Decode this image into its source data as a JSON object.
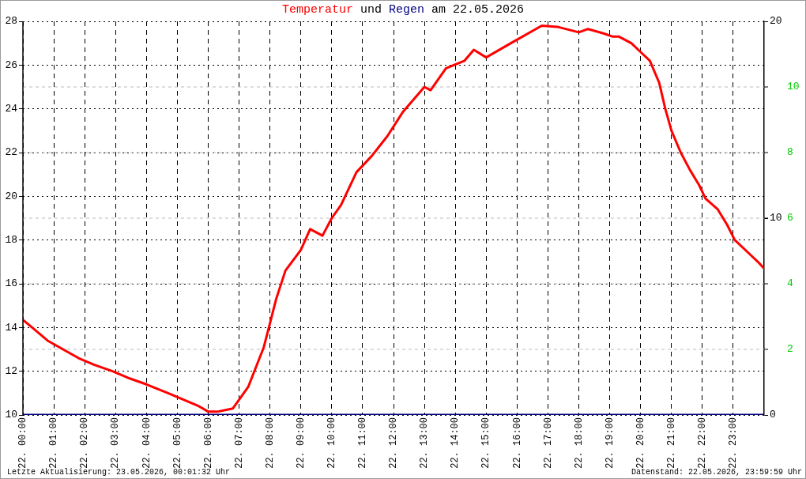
{
  "chart_data": {
    "type": "line",
    "title": "Temperatur und Regen am 22.05.2026",
    "annotations": [
      "Letzte Aktualisierung: 23.05.2026, 00:01:32 Uhr",
      "Datenstand: 22.05.2026, 23:59:59 Uhr"
    ],
    "xlim": [
      "2026-05-22T00:00",
      "2026-05-23T00:00"
    ],
    "xticks": [
      {
        "value": "2026-05-22T00:00",
        "label": "22. 00:00"
      },
      {
        "value": "2026-05-22T01:00",
        "label": "22. 01:00"
      },
      {
        "value": "2026-05-22T02:00",
        "label": "22. 02:00"
      },
      {
        "value": "2026-05-22T03:00",
        "label": "22. 03:00"
      },
      {
        "value": "2026-05-22T04:00",
        "label": "22. 04:00"
      },
      {
        "value": "2026-05-22T05:00",
        "label": "22. 05:00"
      },
      {
        "value": "2026-05-22T06:00",
        "label": "22. 06:00"
      },
      {
        "value": "2026-05-22T07:00",
        "label": "22. 07:00"
      },
      {
        "value": "2026-05-22T08:00",
        "label": "22. 08:00"
      },
      {
        "value": "2026-05-22T09:00",
        "label": "22. 09:00"
      },
      {
        "value": "2026-05-22T10:00",
        "label": "22. 10:00"
      },
      {
        "value": "2026-05-22T11:00",
        "label": "22. 11:00"
      },
      {
        "value": "2026-05-22T12:00",
        "label": "22. 12:00"
      },
      {
        "value": "2026-05-22T13:00",
        "label": "22. 13:00"
      },
      {
        "value": "2026-05-22T14:00",
        "label": "22. 14:00"
      },
      {
        "value": "2026-05-22T15:00",
        "label": "22. 15:00"
      },
      {
        "value": "2026-05-22T16:00",
        "label": "22. 16:00"
      },
      {
        "value": "2026-05-22T17:00",
        "label": "22. 17:00"
      },
      {
        "value": "2026-05-22T18:00",
        "label": "22. 18:00"
      },
      {
        "value": "2026-05-22T19:00",
        "label": "22. 19:00"
      },
      {
        "value": "2026-05-22T20:00",
        "label": "22. 20:00"
      },
      {
        "value": "2026-05-22T21:00",
        "label": "22. 21:00"
      },
      {
        "value": "2026-05-22T22:00",
        "label": "22. 22:00"
      },
      {
        "value": "2026-05-22T23:00",
        "label": "22. 23:00"
      }
    ],
    "ylim": [
      10,
      28
    ],
    "yticks": [
      10,
      12,
      14,
      16,
      18,
      20,
      22,
      24,
      26,
      28
    ],
    "y2lim": [
      0,
      20
    ],
    "y2ticks": [
      0,
      10,
      20
    ],
    "y3lim": [
      0,
      12
    ],
    "y3ticks": [
      2,
      4,
      6,
      8,
      10
    ],
    "grid": true,
    "legend": false,
    "marker": "none",
    "line_style": "solid",
    "series": [
      {
        "color": "#ff0000",
        "x": [
          "2026-05-22T00:00",
          "2026-05-22T00:18",
          "2026-05-22T00:48",
          "2026-05-22T01:18",
          "2026-05-22T01:48",
          "2026-05-22T02:18",
          "2026-05-22T02:54",
          "2026-05-22T03:24",
          "2026-05-22T04:00",
          "2026-05-22T04:42",
          "2026-05-22T05:12",
          "2026-05-22T05:42",
          "2026-05-22T06:00",
          "2026-05-22T06:18",
          "2026-05-22T06:48",
          "2026-05-22T07:18",
          "2026-05-22T07:48",
          "2026-05-22T08:00",
          "2026-05-22T08:12",
          "2026-05-22T08:30",
          "2026-05-22T09:00",
          "2026-05-22T09:18",
          "2026-05-22T09:42",
          "2026-05-22T10:00",
          "2026-05-22T10:18",
          "2026-05-22T10:48",
          "2026-05-22T11:18",
          "2026-05-22T11:48",
          "2026-05-22T12:18",
          "2026-05-22T13:00",
          "2026-05-22T13:12",
          "2026-05-22T13:42",
          "2026-05-22T14:18",
          "2026-05-22T14:36",
          "2026-05-22T15:00",
          "2026-05-22T15:48",
          "2026-05-22T16:48",
          "2026-05-22T17:18",
          "2026-05-22T18:00",
          "2026-05-22T18:18",
          "2026-05-22T18:48",
          "2026-05-22T19:06",
          "2026-05-22T19:18",
          "2026-05-22T19:42",
          "2026-05-22T20:00",
          "2026-05-22T20:18",
          "2026-05-22T20:36",
          "2026-05-22T20:48",
          "2026-05-22T21:00",
          "2026-05-22T21:18",
          "2026-05-22T21:36",
          "2026-05-22T21:54",
          "2026-05-22T22:06",
          "2026-05-22T22:30",
          "2026-05-22T22:48",
          "2026-05-22T23:03",
          "2026-05-22T23:30",
          "2026-05-22T23:48",
          "2026-05-23T00:00"
        ],
        "values": [
          14.35,
          14.0,
          13.4,
          13.0,
          12.6,
          12.3,
          12.0,
          11.7,
          11.4,
          11.0,
          10.7,
          10.4,
          10.15,
          10.15,
          10.3,
          11.3,
          13.1,
          14.2,
          15.3,
          16.6,
          17.55,
          18.5,
          18.2,
          19.0,
          19.6,
          21.1,
          21.85,
          22.75,
          23.85,
          25.0,
          24.85,
          25.85,
          26.2,
          26.7,
          26.35,
          27.0,
          27.8,
          27.75,
          27.5,
          27.65,
          27.45,
          27.3,
          27.3,
          27.0,
          26.6,
          26.2,
          25.2,
          24.0,
          23.0,
          22.0,
          21.2,
          20.5,
          19.9,
          19.4,
          18.7,
          18.0,
          17.4,
          17.0,
          16.7
        ]
      },
      {
        "color": "#000080",
        "axis": "y2",
        "x": [
          "2026-05-22T00:00",
          "2026-05-23T00:00"
        ],
        "values": [
          0,
          0
        ]
      }
    ]
  }
}
